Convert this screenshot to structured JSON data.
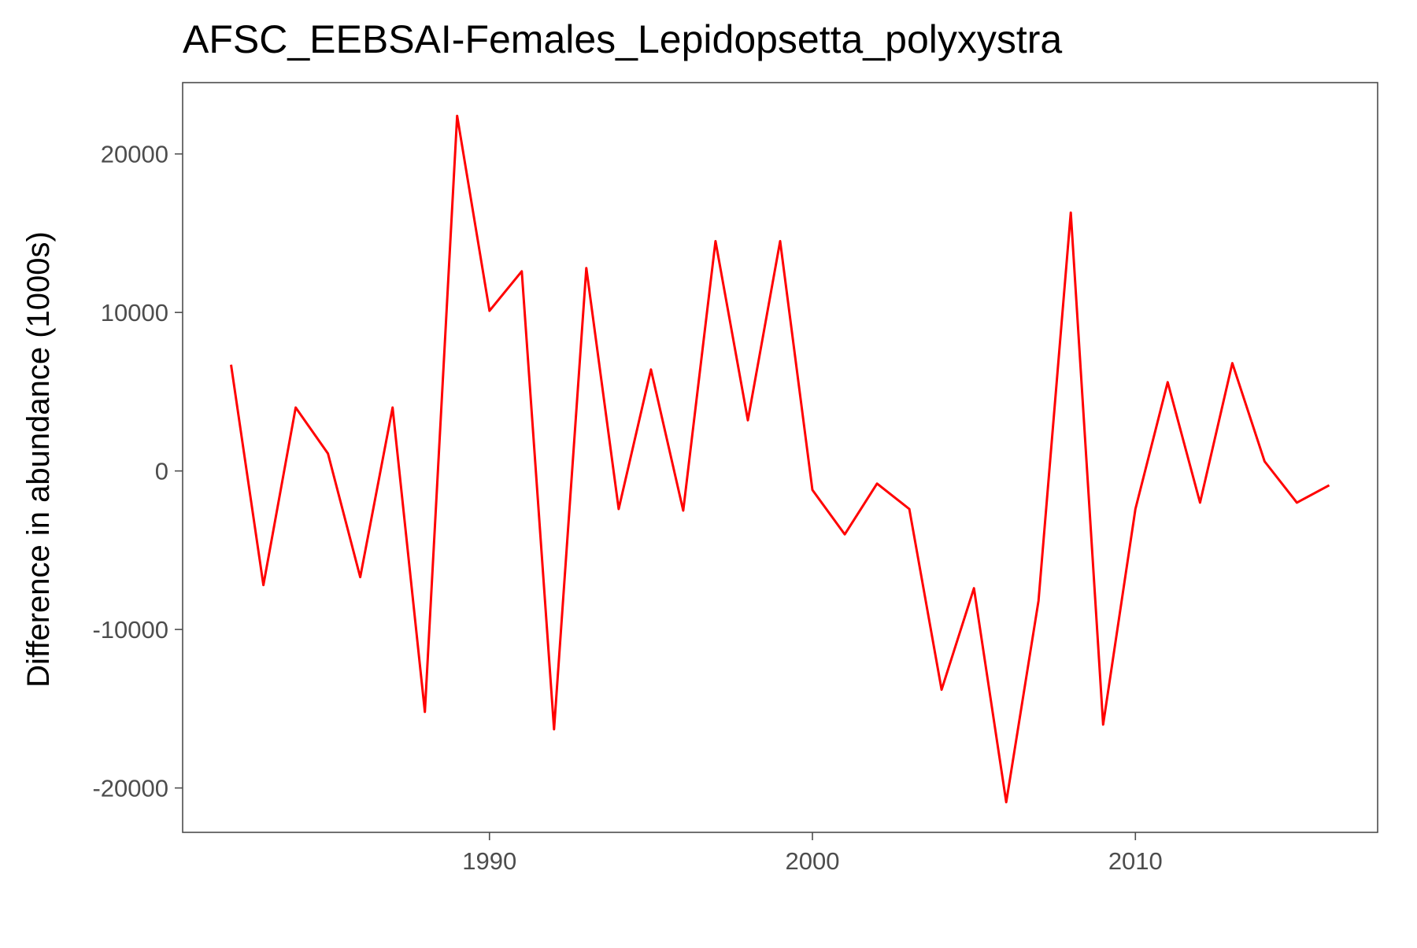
{
  "chart_data": {
    "type": "line",
    "title": "AFSC_EEBSAI-Females_Lepidopsetta_polyxystra",
    "xlabel": "",
    "ylabel": "Difference in abundance (1000s)",
    "xlim": [
      1980.5,
      2017.5
    ],
    "ylim": [
      -22800,
      24500
    ],
    "x_ticks": [
      1990,
      2000,
      2010
    ],
    "y_ticks": [
      -20000,
      -10000,
      0,
      10000,
      20000
    ],
    "grid": false,
    "legend": "none",
    "series": [
      {
        "color": "#ff0000",
        "x": [
          1982,
          1983,
          1984,
          1985,
          1986,
          1987,
          1988,
          1989,
          1990,
          1991,
          1992,
          1993,
          1994,
          1995,
          1996,
          1997,
          1998,
          1999,
          2000,
          2001,
          2002,
          2003,
          2004,
          2005,
          2006,
          2007,
          2008,
          2009,
          2010,
          2011,
          2012,
          2013,
          2014,
          2015,
          2016
        ],
        "values": [
          6700,
          -7200,
          4000,
          1100,
          -6700,
          4000,
          -15200,
          22400,
          10100,
          12600,
          -16300,
          12800,
          -2400,
          6400,
          -2500,
          14500,
          3200,
          14500,
          -1200,
          -4000,
          -800,
          -2400,
          -13800,
          -7400,
          -20900,
          -8200,
          16300,
          -16000,
          -2400,
          5600,
          -2000,
          6800,
          600,
          -2000,
          -900
        ]
      }
    ]
  },
  "colors": {
    "line": "#ff0000",
    "axis": "#4d4d4d",
    "tick_label": "#4d4d4d",
    "title": "#000000",
    "background": "#ffffff"
  }
}
